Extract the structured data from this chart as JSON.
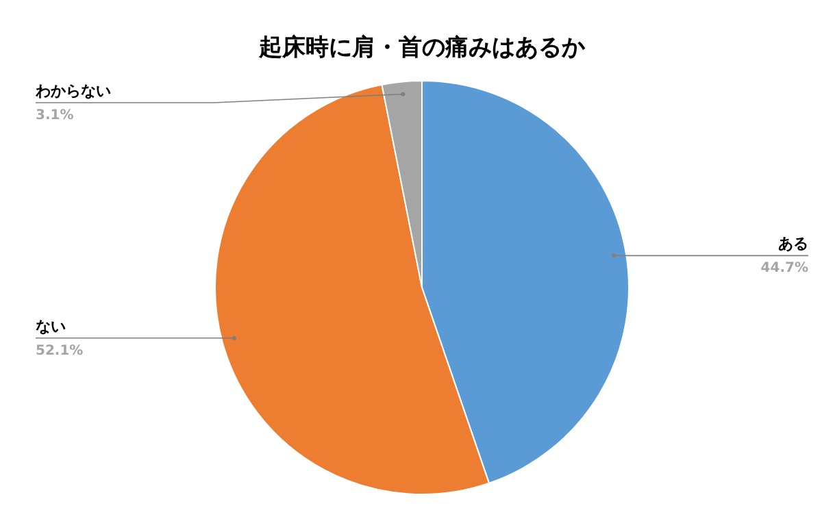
{
  "chart_data": {
    "type": "pie",
    "title": "起床時に肩・首の痛みはあるか",
    "categories": [
      "ある",
      "ない",
      "わからない"
    ],
    "values": [
      44.7,
      52.1,
      3.1
    ],
    "value_labels": [
      "44.7%",
      "52.1%",
      "3.1%"
    ],
    "colors": [
      "#5b9bd5",
      "#ed7d31",
      "#a5a5a5"
    ]
  }
}
